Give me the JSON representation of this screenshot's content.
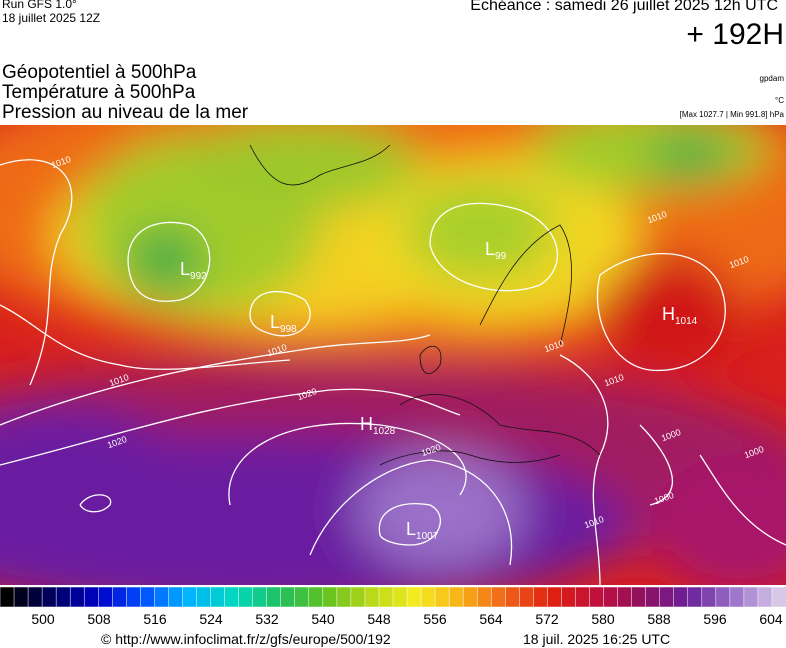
{
  "header": {
    "run": "Run GFS 1.0°",
    "run_date": "18 juillet 2025 12Z",
    "forecast": "Echéance : samedi 26 juillet 2025 12h UTC",
    "lead": "+ 192H",
    "fields": [
      "Géopotentiel à 500hPa",
      "Température à 500hPa",
      "Pression au niveau de la mer"
    ],
    "units": {
      "geopotential": "gpdam",
      "temperature": "°C",
      "pressure": "[Max 1027.7 | Min 991.8] hPa"
    }
  },
  "map": {
    "centers": [
      {
        "type": "L",
        "value": "992"
      },
      {
        "type": "L",
        "value": "998"
      },
      {
        "type": "L",
        "value": "99"
      },
      {
        "type": "H",
        "value": "1014"
      },
      {
        "type": "H",
        "value": "1028"
      },
      {
        "type": "L",
        "value": "1007"
      }
    ],
    "isobar_labels": [
      "1010",
      "1010",
      "1020",
      "1020",
      "1010",
      "1020",
      "1000",
      "1000",
      "1010",
      "1010",
      "1010",
      "1010",
      "1010",
      "1000"
    ]
  },
  "colorbar": {
    "labels": [
      500,
      508,
      516,
      524,
      532,
      540,
      548,
      556,
      564,
      572,
      580,
      588,
      596,
      604
    ]
  },
  "footer": {
    "source": "© http://www.infoclimat.fr/z/gfs/europe/500/192",
    "timestamp": "18 juil. 2025 16:25 UTC"
  }
}
